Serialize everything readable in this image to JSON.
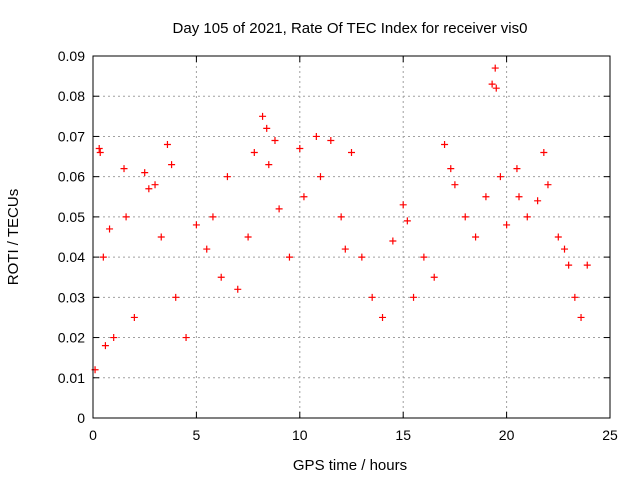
{
  "chart_data": {
    "type": "scatter",
    "title": "Day 105 of 2021, Rate Of TEC Index for receiver vis0",
    "xlabel": "GPS time / hours",
    "ylabel": "ROTI / TECUs",
    "xlim": [
      0,
      25
    ],
    "ylim": [
      0,
      0.09
    ],
    "x_ticks": [
      0,
      5,
      10,
      15,
      20,
      25
    ],
    "x_tick_labels": [
      "0",
      "5",
      "10",
      "15",
      "20",
      "25"
    ],
    "y_ticks": [
      0,
      0.01,
      0.02,
      0.03,
      0.04,
      0.05,
      0.06,
      0.07,
      0.08,
      0.09
    ],
    "y_tick_labels": [
      "0",
      "0.01",
      "0.02",
      "0.03",
      "0.04",
      "0.05",
      "0.06",
      "0.07",
      "0.08",
      "0.09"
    ],
    "grid": true,
    "marker": "+",
    "marker_color": "#ff0000",
    "series": [
      {
        "x": [
          0.1,
          0.3,
          0.35,
          0.5,
          0.6,
          0.8,
          1.0,
          1.5,
          1.6,
          2.0,
          2.5,
          2.7,
          3.0,
          3.3,
          3.6,
          3.8,
          4.0,
          4.5,
          5.0,
          5.5,
          5.8,
          6.2,
          6.5,
          7.0,
          7.5,
          7.8,
          8.2,
          8.4,
          8.5,
          8.8,
          9.0,
          9.5,
          10.0,
          10.2,
          10.8,
          11.0,
          11.5,
          12.0,
          12.2,
          12.5,
          13.0,
          13.5,
          14.0,
          14.5,
          15.0,
          15.2,
          15.5,
          16.0,
          16.5,
          17.0,
          17.3,
          17.5,
          18.0,
          18.5,
          19.0,
          19.3,
          19.45,
          19.5,
          19.7,
          20.0,
          20.5,
          20.6,
          21.0,
          21.5,
          21.8,
          22.0,
          22.5,
          22.8,
          23.0,
          23.3,
          23.6,
          23.9
        ],
        "y": [
          0.012,
          0.067,
          0.066,
          0.04,
          0.018,
          0.047,
          0.02,
          0.062,
          0.05,
          0.025,
          0.061,
          0.057,
          0.058,
          0.045,
          0.068,
          0.063,
          0.03,
          0.02,
          0.048,
          0.042,
          0.05,
          0.035,
          0.06,
          0.032,
          0.045,
          0.066,
          0.075,
          0.072,
          0.063,
          0.069,
          0.052,
          0.04,
          0.067,
          0.055,
          0.07,
          0.06,
          0.069,
          0.05,
          0.042,
          0.066,
          0.04,
          0.03,
          0.025,
          0.044,
          0.053,
          0.049,
          0.03,
          0.04,
          0.035,
          0.068,
          0.062,
          0.058,
          0.05,
          0.045,
          0.055,
          0.083,
          0.087,
          0.082,
          0.06,
          0.048,
          0.062,
          0.055,
          0.05,
          0.054,
          0.066,
          0.058,
          0.045,
          0.042,
          0.038,
          0.03,
          0.025,
          0.038
        ]
      }
    ]
  }
}
